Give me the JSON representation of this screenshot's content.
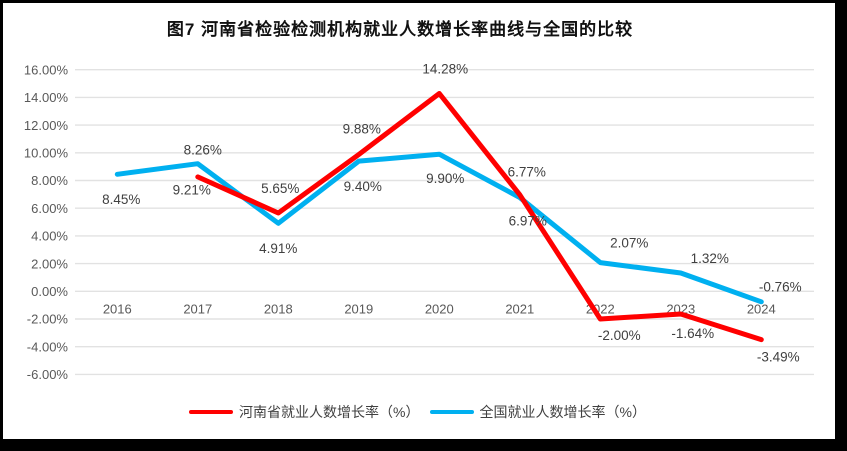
{
  "title": "图7  河南省检验检测机构就业人数增长率曲线与全国的比较",
  "chart_data": {
    "type": "line",
    "title": "图7  河南省检验检测机构就业人数增长率曲线与全国的比较",
    "categories": [
      "2016",
      "2017",
      "2018",
      "2019",
      "2020",
      "2021",
      "2022",
      "2023",
      "2024"
    ],
    "xlabel": "",
    "ylabel": "",
    "grid": true,
    "legend_position": "bottom",
    "y_axis": {
      "min": -6,
      "max": 16,
      "step": 2,
      "tick_labels": [
        "16.00%",
        "14.00%",
        "12.00%",
        "10.00%",
        "8.00%",
        "6.00%",
        "4.00%",
        "2.00%",
        "0.00%",
        "-2.00%",
        "-4.00%",
        "-6.00%"
      ]
    },
    "colors": {
      "henan": "#FF0000",
      "national": "#00B0F0",
      "gridline": "#E2E2E2",
      "axis_text": "#595959",
      "data_label_text": "#404040"
    },
    "series": [
      {
        "name": "河南省就业人数增长率（%）",
        "color": "#FF0000",
        "values": [
          null,
          8.26,
          5.65,
          9.88,
          14.28,
          6.97,
          -2.0,
          -1.64,
          -3.49
        ],
        "data_labels": [
          null,
          "8.26%",
          "5.65%",
          "9.88%",
          "14.28%",
          "6.97%",
          "-2.00%",
          "-1.64%",
          "-3.49%"
        ],
        "label_offsets": [
          null,
          [
            5,
            -27
          ],
          [
            2,
            -25
          ],
          [
            3,
            -26
          ],
          [
            6,
            -25
          ],
          [
            8,
            26
          ],
          [
            19,
            16
          ],
          [
            12,
            19
          ],
          [
            17,
            17
          ]
        ]
      },
      {
        "name": "全国就业人数增长率（%）",
        "color": "#00B0F0",
        "values": [
          8.45,
          9.21,
          4.91,
          9.4,
          9.9,
          6.77,
          2.07,
          1.32,
          -0.76
        ],
        "data_labels": [
          "8.45%",
          "9.21%",
          "4.91%",
          "9.40%",
          "9.90%",
          "6.77%",
          "2.07%",
          "1.32%",
          "-0.76%"
        ],
        "label_offsets": [
          [
            4,
            25
          ],
          [
            -6,
            26
          ],
          [
            0,
            25
          ],
          [
            4,
            25
          ],
          [
            6,
            24
          ],
          [
            7,
            -26
          ],
          [
            29,
            -20
          ],
          [
            29,
            -15
          ],
          [
            19,
            -15
          ]
        ]
      }
    ]
  }
}
